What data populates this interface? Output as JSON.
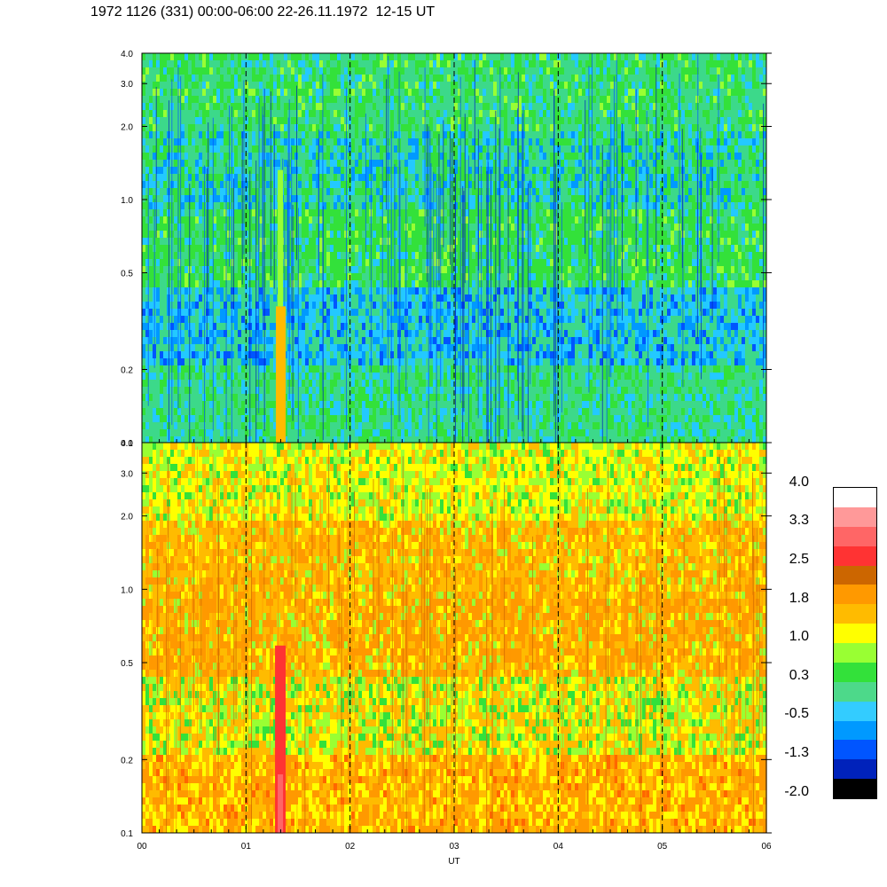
{
  "title": "1972 1126 (331) 00:00-06:00 22-26.11.1972  12-15 UT",
  "chart_data": [
    {
      "type": "heatmap",
      "panel": "upper",
      "x_ticks": [
        "00",
        "01",
        "02",
        "03",
        "04",
        "05",
        "06"
      ],
      "y_ticks": [
        "0.1",
        "0.2",
        "0.5",
        "1.0",
        "2.0",
        "3.0",
        "4.0"
      ],
      "y_scale": "log",
      "ylim": [
        0.1,
        4.0
      ],
      "xlim": [
        0,
        6
      ],
      "dominant_colors": [
        "#3cd98a",
        "#33e13a",
        "#0066ff",
        "#23c9ff"
      ]
    },
    {
      "type": "heatmap",
      "panel": "lower",
      "x_ticks": [
        "00",
        "01",
        "02",
        "03",
        "04",
        "05",
        "06"
      ],
      "y_ticks": [
        "0.1",
        "0.2",
        "0.5",
        "1.0",
        "2.0",
        "3.0",
        "4.0"
      ],
      "y_scale": "log",
      "ylim": [
        0.1,
        4.0
      ],
      "xlim": [
        0,
        6
      ],
      "xlabel": "UT",
      "dominant_colors": [
        "#ff9a00",
        "#ffbb00",
        "#ffff00",
        "#99ff33"
      ]
    }
  ],
  "colorbar": {
    "labels": [
      "4.0",
      "3.3",
      "2.5",
      "1.8",
      "1.0",
      "0.3",
      "-0.5",
      "-1.3",
      "-2.0"
    ],
    "colors": [
      "#ffffff",
      "#ff9999",
      "#ff6666",
      "#ff3333",
      "#cc6600",
      "#ff9900",
      "#ffbb00",
      "#ffff00",
      "#99ff33",
      "#33e13a",
      "#4dd98a",
      "#33ccff",
      "#0099ff",
      "#0055ff",
      "#0022bb",
      "#000000"
    ]
  }
}
